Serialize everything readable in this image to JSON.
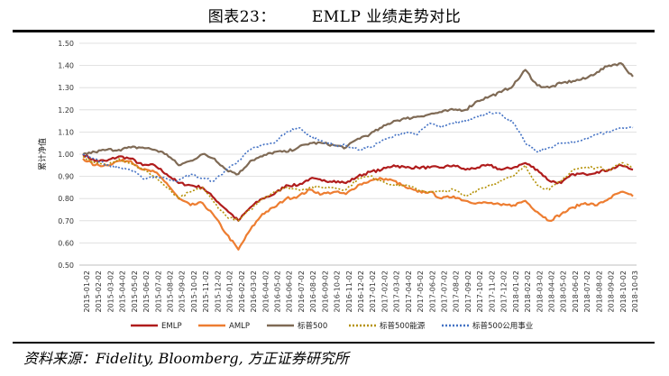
{
  "figure": {
    "label": "图表23：",
    "title": "EMLP 业绩走势对比",
    "source": "资料来源：Fidelity, Bloomberg, 方正证券研究所"
  },
  "chart_data": {
    "type": "line",
    "ylabel": "累计净值",
    "xlabel": "",
    "ylim": [
      0.5,
      1.5
    ],
    "yticks": [
      "1.50",
      "1.40",
      "1.30",
      "1.20",
      "1.10",
      "1.00",
      "0.90",
      "0.80",
      "0.70",
      "0.60",
      "0.50"
    ],
    "ytick_values": [
      1.5,
      1.4,
      1.3,
      1.2,
      1.1,
      1.0,
      0.9,
      0.8,
      0.7,
      0.6,
      0.5
    ],
    "x": [
      "2015-01-02",
      "2015-02-03",
      "2015-03-05",
      "2015-04-06",
      "2015-05-06",
      "2015-06-05",
      "2015-07-06",
      "2015-08-05",
      "2015-09-04",
      "2015-10-06",
      "2015-11-05",
      "2015-12-05",
      "2016-01-04",
      "2016-02-03",
      "2016-03-04",
      "2016-04-03",
      "2016-05-03",
      "2016-06-02",
      "2016-07-02",
      "2016-08-01",
      "2016-08-31",
      "2016-09-30",
      "2016-10-30",
      "2016-11-29",
      "2016-12-29",
      "2017-01-28",
      "2017-02-27",
      "2017-03-29",
      "2017-04-28",
      "2017-05-28",
      "2017-06-27",
      "2017-07-27",
      "2017-08-26",
      "2017-09-25",
      "2017-10-25",
      "2017-11-24",
      "2017-12-24",
      "2018-01-23",
      "2018-02-22",
      "2018-03-24",
      "2018-04-23",
      "2018-05-23",
      "2018-06-22",
      "2018-07-22",
      "2018-08-21",
      "2018-09-20",
      "2018-10-20"
    ],
    "xticks": [
      "2015-01-02",
      "2015-02-02",
      "2015-03-02",
      "2015-04-02",
      "2015-05-02",
      "2015-06-02",
      "2015-07-02",
      "2015-08-02",
      "2015-09-02",
      "2015-10-02",
      "2015-11-02",
      "2015-12-02",
      "2016-01-02",
      "2016-02-02",
      "2016-03-02",
      "2016-04-02",
      "2016-05-02",
      "2016-06-02",
      "2016-07-02",
      "2016-08-02",
      "2016-09-02",
      "2016-10-02",
      "2016-11-02",
      "2016-12-02",
      "2017-01-02",
      "2017-02-02",
      "2017-03-02",
      "2017-04-02",
      "2017-05-02",
      "2017-06-02",
      "2017-07-02",
      "2017-08-02",
      "2017-09-02",
      "2017-10-02",
      "2017-11-02",
      "2017-12-02",
      "2018-01-02",
      "2018-02-02",
      "2018-03-02",
      "2018-04-02",
      "2018-05-02",
      "2018-06-02",
      "2018-07-02",
      "2018-08-02",
      "2018-09-02",
      "2018-10-02",
      "2018-10-03"
    ],
    "series": [
      {
        "name": "EMLP",
        "color": "#b01c1c",
        "style": "solid",
        "values": [
          1.0,
          0.97,
          0.97,
          0.99,
          0.98,
          0.95,
          0.95,
          0.91,
          0.87,
          0.86,
          0.85,
          0.8,
          0.75,
          0.7,
          0.76,
          0.8,
          0.82,
          0.86,
          0.86,
          0.89,
          0.88,
          0.88,
          0.87,
          0.9,
          0.92,
          0.93,
          0.95,
          0.94,
          0.94,
          0.94,
          0.94,
          0.95,
          0.93,
          0.94,
          0.95,
          0.93,
          0.94,
          0.96,
          0.93,
          0.88,
          0.87,
          0.91,
          0.91,
          0.92,
          0.93,
          0.95,
          0.93
        ]
      },
      {
        "name": "AMLP",
        "color": "#ed7d31",
        "style": "solid",
        "values": [
          0.98,
          0.95,
          0.95,
          0.97,
          0.97,
          0.93,
          0.92,
          0.87,
          0.8,
          0.77,
          0.78,
          0.72,
          0.64,
          0.57,
          0.66,
          0.73,
          0.76,
          0.8,
          0.81,
          0.84,
          0.82,
          0.83,
          0.82,
          0.86,
          0.88,
          0.89,
          0.88,
          0.85,
          0.83,
          0.83,
          0.8,
          0.81,
          0.79,
          0.78,
          0.78,
          0.77,
          0.77,
          0.79,
          0.74,
          0.7,
          0.73,
          0.76,
          0.78,
          0.77,
          0.8,
          0.83,
          0.81
        ]
      },
      {
        "name": "标普500",
        "color": "#7f6a55",
        "style": "solid",
        "values": [
          1.0,
          1.01,
          1.02,
          1.02,
          1.03,
          1.03,
          1.02,
          1.0,
          0.95,
          0.97,
          1.0,
          0.98,
          0.93,
          0.91,
          0.97,
          0.99,
          1.01,
          1.01,
          1.03,
          1.05,
          1.05,
          1.04,
          1.03,
          1.07,
          1.09,
          1.12,
          1.15,
          1.16,
          1.17,
          1.18,
          1.19,
          1.2,
          1.2,
          1.24,
          1.26,
          1.28,
          1.31,
          1.38,
          1.31,
          1.3,
          1.32,
          1.33,
          1.34,
          1.37,
          1.4,
          1.41,
          1.35
        ]
      },
      {
        "name": "标普500能源",
        "color": "#b5920a",
        "style": "dotted",
        "values": [
          0.99,
          0.96,
          0.95,
          0.98,
          0.96,
          0.93,
          0.9,
          0.85,
          0.8,
          0.83,
          0.85,
          0.78,
          0.72,
          0.7,
          0.75,
          0.8,
          0.83,
          0.85,
          0.84,
          0.85,
          0.85,
          0.85,
          0.84,
          0.89,
          0.9,
          0.88,
          0.86,
          0.86,
          0.84,
          0.83,
          0.83,
          0.84,
          0.81,
          0.84,
          0.86,
          0.88,
          0.9,
          0.95,
          0.86,
          0.84,
          0.88,
          0.93,
          0.94,
          0.94,
          0.93,
          0.96,
          0.94
        ]
      },
      {
        "name": "标普500公用事业",
        "color": "#4472c4",
        "style": "dotted",
        "values": [
          1.0,
          0.98,
          0.95,
          0.94,
          0.93,
          0.89,
          0.9,
          0.89,
          0.88,
          0.91,
          0.89,
          0.88,
          0.93,
          0.97,
          1.02,
          1.04,
          1.05,
          1.1,
          1.12,
          1.08,
          1.06,
          1.04,
          1.04,
          1.02,
          1.03,
          1.06,
          1.08,
          1.1,
          1.09,
          1.14,
          1.12,
          1.14,
          1.15,
          1.17,
          1.19,
          1.18,
          1.14,
          1.05,
          1.01,
          1.03,
          1.05,
          1.05,
          1.07,
          1.09,
          1.1,
          1.12,
          1.12
        ]
      }
    ],
    "legend_position": "bottom",
    "grid": true
  }
}
